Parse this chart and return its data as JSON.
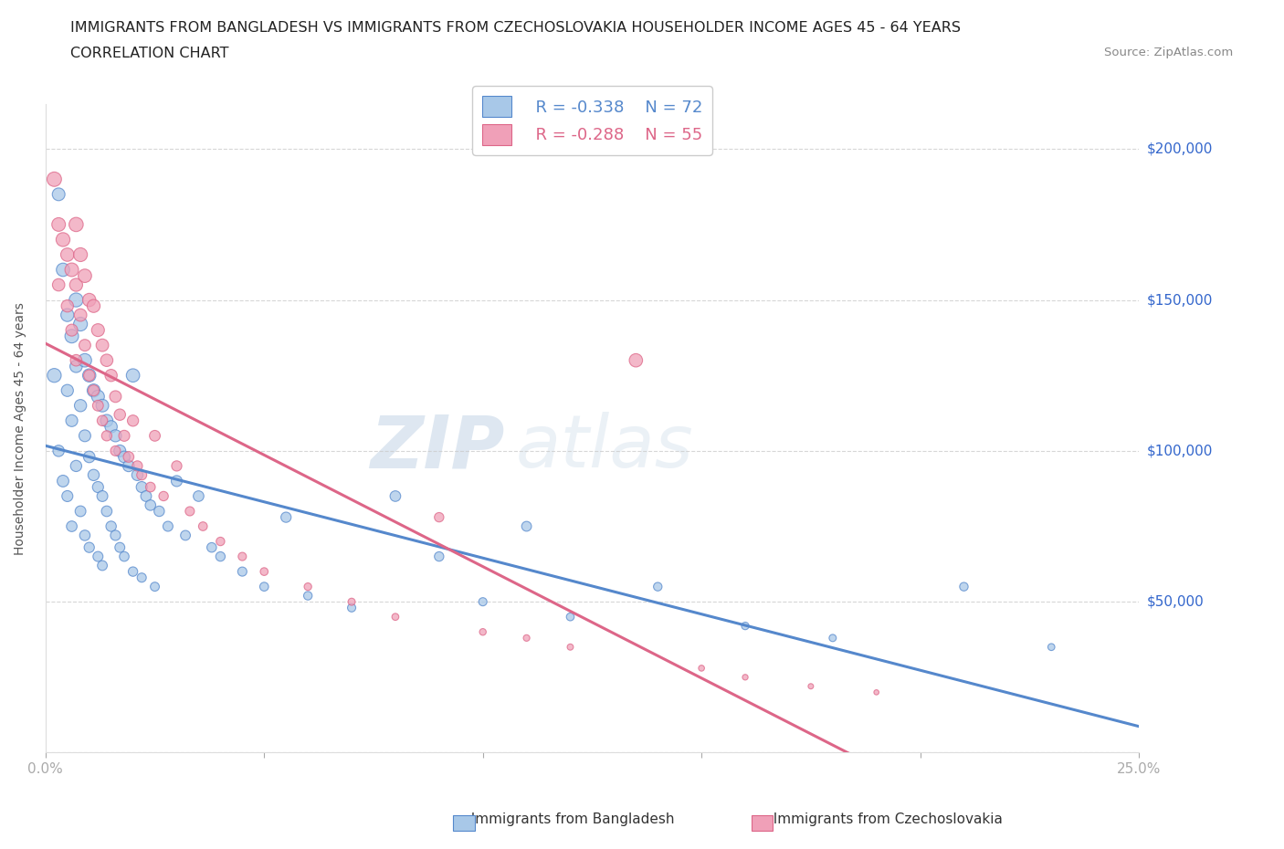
{
  "title_line1": "IMMIGRANTS FROM BANGLADESH VS IMMIGRANTS FROM CZECHOSLOVAKIA HOUSEHOLDER INCOME AGES 45 - 64 YEARS",
  "title_line2": "CORRELATION CHART",
  "source_text": "Source: ZipAtlas.com",
  "ylabel": "Householder Income Ages 45 - 64 years",
  "xlim": [
    0.0,
    0.25
  ],
  "ylim": [
    0,
    215000
  ],
  "xticks": [
    0.0,
    0.05,
    0.1,
    0.15,
    0.2,
    0.25
  ],
  "xticklabels": [
    "0.0%",
    "",
    "",
    "",
    "",
    "25.0%"
  ],
  "yticks": [
    0,
    50000,
    100000,
    150000,
    200000
  ],
  "yticklabels": [
    "",
    "$50,000",
    "$100,000",
    "$150,000",
    "$200,000"
  ],
  "legend_r1": "R = -0.338",
  "legend_n1": "N = 72",
  "legend_r2": "R = -0.288",
  "legend_n2": "N = 55",
  "color_bangladesh": "#a8c8e8",
  "color_czechoslovakia": "#f0a0b8",
  "line_color_bangladesh": "#5588cc",
  "line_color_czechoslovakia": "#dd6688",
  "watermark_zip": "ZIP",
  "watermark_atlas": "atlas",
  "bd_x": [
    0.002,
    0.003,
    0.003,
    0.004,
    0.004,
    0.005,
    0.005,
    0.005,
    0.006,
    0.006,
    0.006,
    0.007,
    0.007,
    0.007,
    0.008,
    0.008,
    0.008,
    0.009,
    0.009,
    0.009,
    0.01,
    0.01,
    0.01,
    0.011,
    0.011,
    0.012,
    0.012,
    0.012,
    0.013,
    0.013,
    0.013,
    0.014,
    0.014,
    0.015,
    0.015,
    0.016,
    0.016,
    0.017,
    0.017,
    0.018,
    0.018,
    0.019,
    0.02,
    0.02,
    0.021,
    0.022,
    0.022,
    0.023,
    0.024,
    0.025,
    0.026,
    0.028,
    0.03,
    0.032,
    0.035,
    0.038,
    0.04,
    0.045,
    0.05,
    0.055,
    0.06,
    0.07,
    0.08,
    0.09,
    0.1,
    0.11,
    0.12,
    0.14,
    0.16,
    0.18,
    0.21,
    0.23
  ],
  "bd_y": [
    125000,
    185000,
    100000,
    160000,
    90000,
    145000,
    120000,
    85000,
    138000,
    110000,
    75000,
    150000,
    128000,
    95000,
    142000,
    115000,
    80000,
    130000,
    105000,
    72000,
    125000,
    98000,
    68000,
    120000,
    92000,
    118000,
    88000,
    65000,
    115000,
    85000,
    62000,
    110000,
    80000,
    108000,
    75000,
    105000,
    72000,
    100000,
    68000,
    98000,
    65000,
    95000,
    125000,
    60000,
    92000,
    88000,
    58000,
    85000,
    82000,
    55000,
    80000,
    75000,
    90000,
    72000,
    85000,
    68000,
    65000,
    60000,
    55000,
    78000,
    52000,
    48000,
    85000,
    65000,
    50000,
    75000,
    45000,
    55000,
    42000,
    38000,
    55000,
    35000
  ],
  "cz_x": [
    0.002,
    0.003,
    0.003,
    0.004,
    0.005,
    0.005,
    0.006,
    0.006,
    0.007,
    0.007,
    0.007,
    0.008,
    0.008,
    0.009,
    0.009,
    0.01,
    0.01,
    0.011,
    0.011,
    0.012,
    0.012,
    0.013,
    0.013,
    0.014,
    0.014,
    0.015,
    0.016,
    0.016,
    0.017,
    0.018,
    0.019,
    0.02,
    0.021,
    0.022,
    0.024,
    0.025,
    0.027,
    0.03,
    0.033,
    0.036,
    0.04,
    0.045,
    0.05,
    0.06,
    0.07,
    0.08,
    0.09,
    0.1,
    0.11,
    0.12,
    0.135,
    0.15,
    0.16,
    0.175,
    0.19
  ],
  "cz_y": [
    190000,
    175000,
    155000,
    170000,
    165000,
    148000,
    160000,
    140000,
    175000,
    155000,
    130000,
    165000,
    145000,
    158000,
    135000,
    150000,
    125000,
    148000,
    120000,
    140000,
    115000,
    135000,
    110000,
    130000,
    105000,
    125000,
    118000,
    100000,
    112000,
    105000,
    98000,
    110000,
    95000,
    92000,
    88000,
    105000,
    85000,
    95000,
    80000,
    75000,
    70000,
    65000,
    60000,
    55000,
    50000,
    45000,
    78000,
    40000,
    38000,
    35000,
    130000,
    28000,
    25000,
    22000,
    20000
  ],
  "bd_sizes": [
    120,
    100,
    80,
    110,
    85,
    105,
    90,
    75,
    115,
    88,
    70,
    120,
    95,
    78,
    118,
    92,
    72,
    112,
    86,
    68,
    108,
    82,
    65,
    105,
    79,
    102,
    76,
    62,
    99,
    73,
    60,
    96,
    70,
    93,
    67,
    90,
    64,
    87,
    61,
    84,
    58,
    81,
    110,
    55,
    78,
    75,
    52,
    72,
    69,
    50,
    67,
    62,
    75,
    60,
    70,
    57,
    55,
    52,
    48,
    65,
    45,
    42,
    70,
    55,
    42,
    60,
    38,
    45,
    35,
    32,
    45,
    30
  ],
  "cz_sizes": [
    130,
    115,
    95,
    120,
    110,
    92,
    115,
    88,
    125,
    105,
    82,
    118,
    98,
    112,
    85,
    108,
    78,
    105,
    75,
    102,
    72,
    98,
    68,
    95,
    65,
    92,
    85,
    62,
    80,
    75,
    70,
    78,
    65,
    62,
    58,
    72,
    55,
    65,
    52,
    48,
    45,
    42,
    38,
    35,
    32,
    30,
    55,
    28,
    26,
    24,
    110,
    22,
    20,
    18,
    16
  ]
}
